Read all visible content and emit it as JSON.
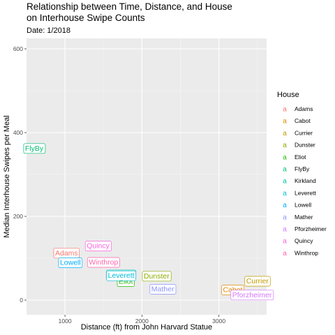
{
  "chart_data": {
    "type": "scatter",
    "title": "Relationship between Time, Distance, and House\non Interhouse Swipe Counts",
    "subtitle": "Date: 1/2018",
    "xlabel": "Distance (ft) from John Harvard Statue",
    "ylabel": "Median Interhouse Swipes per Meal",
    "xlim": [
      500,
      3620
    ],
    "ylim": [
      -35,
      625
    ],
    "xticks": [
      1000,
      2000,
      3000
    ],
    "yticks": [
      0,
      200,
      400,
      600
    ],
    "grid": true,
    "legend": {
      "title": "House",
      "position": "right",
      "key_glyph": "a"
    },
    "points": [
      {
        "name": "Adams",
        "x": 1020,
        "y": 112,
        "color": "#F8766D"
      },
      {
        "name": "Cabot",
        "x": 3180,
        "y": 24,
        "color": "#E18A00"
      },
      {
        "name": "Currier",
        "x": 3500,
        "y": 45,
        "color": "#BE9C00"
      },
      {
        "name": "Dunster",
        "x": 2190,
        "y": 57,
        "color": "#8CAB00"
      },
      {
        "name": "Eliot",
        "x": 1790,
        "y": 44,
        "color": "#24B700"
      },
      {
        "name": "FlyBy",
        "x": 600,
        "y": 362,
        "color": "#00BE70"
      },
      {
        "name": "Kirkland",
        "x": 1730,
        "y": 60,
        "color": "#00C1AB"
      },
      {
        "name": "Leverett",
        "x": 1730,
        "y": 58,
        "color": "#00BBDA"
      },
      {
        "name": "Lowell",
        "x": 1070,
        "y": 89,
        "color": "#00ACFC"
      },
      {
        "name": "Mather",
        "x": 2270,
        "y": 26,
        "color": "#8B93FF"
      },
      {
        "name": "Pforzheimer",
        "x": 3430,
        "y": 12,
        "color": "#D575FE"
      },
      {
        "name": "Quincy",
        "x": 1430,
        "y": 129,
        "color": "#F962DD"
      },
      {
        "name": "Winthrop",
        "x": 1500,
        "y": 90,
        "color": "#FF65AC"
      }
    ]
  }
}
